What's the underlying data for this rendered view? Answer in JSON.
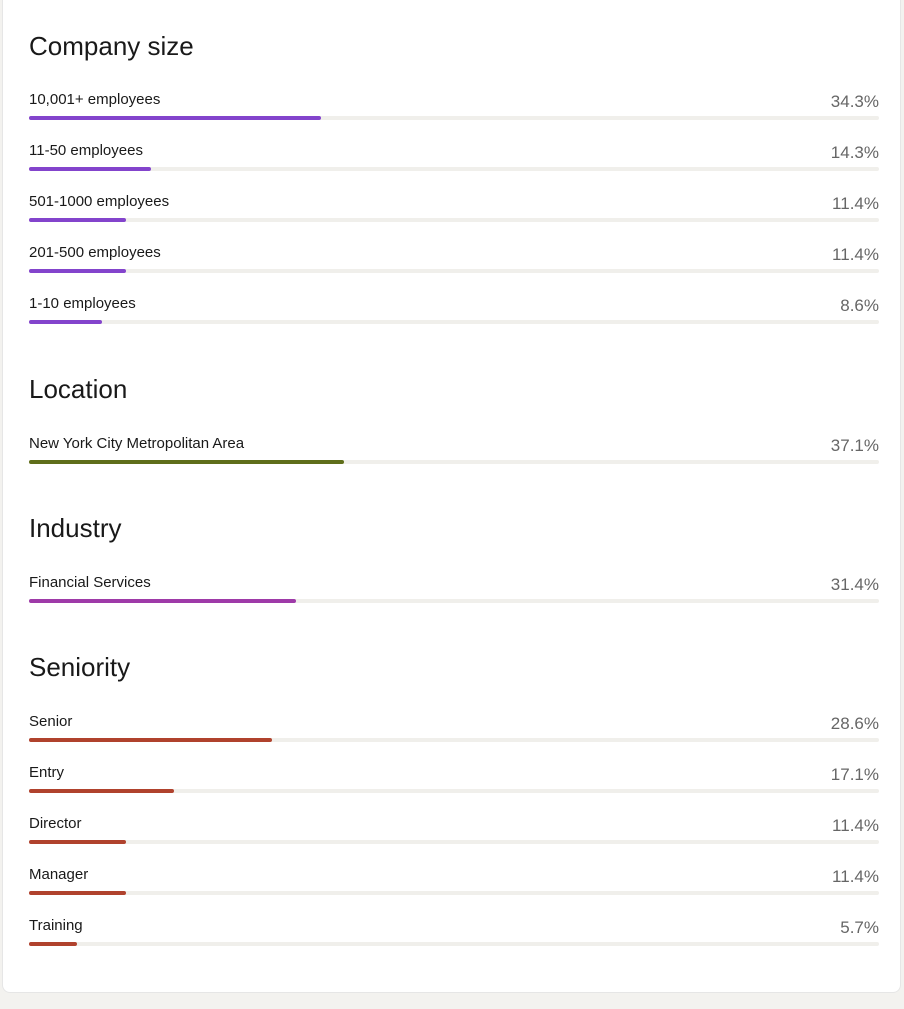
{
  "colors": {
    "company_size": "#8344cc",
    "location": "#5f6e1a",
    "industry": "#9e3aa8",
    "seniority": "#b0422d"
  },
  "sections": [
    {
      "key": "company_size",
      "title": "Company size",
      "rows": [
        {
          "label": "10,001+ employees",
          "value": "34.3%",
          "percent": 34.3
        },
        {
          "label": "11-50 employees",
          "value": "14.3%",
          "percent": 14.3
        },
        {
          "label": "501-1000 employees",
          "value": "11.4%",
          "percent": 11.4
        },
        {
          "label": "201-500 employees",
          "value": "11.4%",
          "percent": 11.4
        },
        {
          "label": "1-10 employees",
          "value": "8.6%",
          "percent": 8.6
        }
      ]
    },
    {
      "key": "location",
      "title": "Location",
      "rows": [
        {
          "label": "New York City Metropolitan Area",
          "value": "37.1%",
          "percent": 37.1
        }
      ]
    },
    {
      "key": "industry",
      "title": "Industry",
      "rows": [
        {
          "label": "Financial Services",
          "value": "31.4%",
          "percent": 31.4
        }
      ]
    },
    {
      "key": "seniority",
      "title": "Seniority",
      "rows": [
        {
          "label": "Senior",
          "value": "28.6%",
          "percent": 28.6
        },
        {
          "label": "Entry",
          "value": "17.1%",
          "percent": 17.1
        },
        {
          "label": "Director",
          "value": "11.4%",
          "percent": 11.4
        },
        {
          "label": "Manager",
          "value": "11.4%",
          "percent": 11.4
        },
        {
          "label": "Training",
          "value": "5.7%",
          "percent": 5.7
        }
      ]
    }
  ]
}
